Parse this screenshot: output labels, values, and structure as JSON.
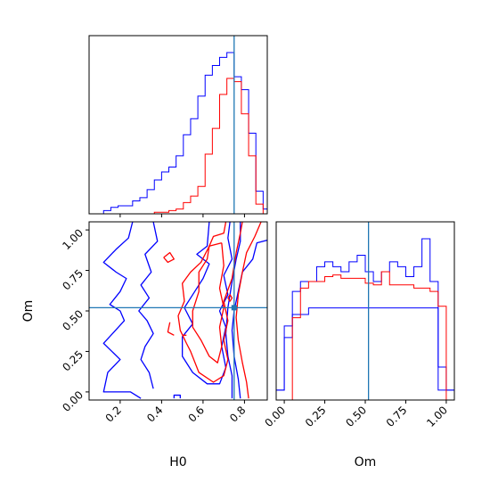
{
  "chart_data": [
    {
      "panel": "H0 marginal",
      "type": "histogram",
      "xlabel": "",
      "xlim": [
        0.05,
        0.91
      ],
      "truth": 0.75,
      "colors": {
        "blue": "#0000ff",
        "red": "#ff0000",
        "truth": "#1f77b4"
      },
      "bin_edges": [
        0.05,
        0.085,
        0.12,
        0.155,
        0.19,
        0.225,
        0.26,
        0.295,
        0.33,
        0.365,
        0.4,
        0.435,
        0.47,
        0.505,
        0.54,
        0.575,
        0.61,
        0.645,
        0.68,
        0.715,
        0.75,
        0.785,
        0.82,
        0.855,
        0.89,
        0.91
      ],
      "series": [
        {
          "values": [
            0.0,
            0.0,
            0.02,
            0.04,
            0.05,
            0.05,
            0.08,
            0.1,
            0.15,
            0.21,
            0.26,
            0.29,
            0.36,
            0.49,
            0.59,
            0.73,
            0.86,
            0.92,
            0.97,
            1.0,
            0.85,
            0.77,
            0.5,
            0.14,
            0.03
          ]
        },
        {
          "values": [
            0.0,
            0.0,
            0.0,
            0.0,
            0.0,
            0.0,
            0.0,
            0.0,
            0.0,
            0.01,
            0.01,
            0.02,
            0.03,
            0.07,
            0.11,
            0.17,
            0.37,
            0.53,
            0.74,
            0.84,
            0.82,
            0.62,
            0.36,
            0.06,
            0.0
          ]
        }
      ]
    },
    {
      "panel": "Om marginal",
      "type": "histogram",
      "xlabel": "Om",
      "xlim": [
        -0.05,
        1.05
      ],
      "xticks": [
        "0.00",
        "0.25",
        "0.50",
        "0.75",
        "1.00"
      ],
      "truth": 0.52,
      "bin_edges": [
        -0.05,
        0.0,
        0.05,
        0.1,
        0.15,
        0.2,
        0.25,
        0.3,
        0.35,
        0.4,
        0.45,
        0.5,
        0.55,
        0.6,
        0.65,
        0.7,
        0.75,
        0.8,
        0.85,
        0.9,
        0.95,
        1.0,
        1.05
      ],
      "series": [
        {
          "values": [
            0.06,
            0.45,
            0.52,
            0.52,
            0.56,
            0.56,
            0.56,
            0.56,
            0.56,
            0.56,
            0.56,
            0.56,
            0.56,
            0.56,
            0.56,
            0.56,
            0.56,
            0.56,
            0.56,
            0.56,
            0.2,
            0.06
          ]
        },
        {
          "values": [
            0.06,
            0.38,
            0.66,
            0.72,
            0.72,
            0.81,
            0.84,
            0.81,
            0.78,
            0.84,
            0.88,
            0.78,
            0.72,
            0.78,
            0.84,
            0.81,
            0.75,
            0.81,
            0.98,
            0.72,
            0.06,
            0.06
          ]
        },
        {
          "values": [
            0.0,
            0.0,
            0.5,
            0.68,
            0.72,
            0.72,
            0.75,
            0.76,
            0.74,
            0.74,
            0.74,
            0.71,
            0.7,
            0.78,
            0.7,
            0.7,
            0.7,
            0.68,
            0.68,
            0.66,
            0.57,
            0.0
          ]
        }
      ]
    },
    {
      "panel": "H0 vs Om",
      "type": "contour",
      "xlabel": "H0",
      "ylabel": "Om",
      "xlim": [
        0.05,
        0.91
      ],
      "ylim": [
        -0.05,
        1.05
      ],
      "xticks": [
        "0.2",
        "0.4",
        "0.6",
        "0.8"
      ],
      "yticks": [
        "0.00",
        "0.25",
        "0.50",
        "0.75",
        "1.00"
      ],
      "truth": {
        "x": 0.75,
        "y": 0.52
      },
      "series": [
        {
          "color": "blue",
          "lines": [
            [
              [
                0.26,
                1.05
              ],
              [
                0.24,
                0.95
              ],
              [
                0.18,
                0.88
              ],
              [
                0.12,
                0.8
              ],
              [
                0.18,
                0.74
              ],
              [
                0.23,
                0.7
              ],
              [
                0.2,
                0.62
              ],
              [
                0.15,
                0.54
              ],
              [
                0.2,
                0.5
              ],
              [
                0.22,
                0.44
              ],
              [
                0.17,
                0.37
              ],
              [
                0.12,
                0.3
              ],
              [
                0.16,
                0.25
              ],
              [
                0.2,
                0.2
              ],
              [
                0.14,
                0.12
              ],
              [
                0.12,
                0.0
              ],
              [
                0.25,
                0.0
              ],
              [
                0.3,
                -0.04
              ]
            ],
            [
              [
                0.36,
                1.05
              ],
              [
                0.38,
                0.93
              ],
              [
                0.32,
                0.85
              ],
              [
                0.35,
                0.74
              ],
              [
                0.3,
                0.66
              ],
              [
                0.34,
                0.58
              ],
              [
                0.29,
                0.5
              ],
              [
                0.33,
                0.44
              ],
              [
                0.36,
                0.36
              ],
              [
                0.32,
                0.28
              ],
              [
                0.3,
                0.2
              ],
              [
                0.34,
                0.12
              ],
              [
                0.36,
                0.02
              ]
            ],
            [
              [
                0.63,
                1.05
              ],
              [
                0.62,
                0.9
              ],
              [
                0.57,
                0.85
              ],
              [
                0.63,
                0.79
              ],
              [
                0.6,
                0.7
              ],
              [
                0.56,
                0.62
              ],
              [
                0.51,
                0.52
              ],
              [
                0.55,
                0.42
              ],
              [
                0.5,
                0.34
              ],
              [
                0.5,
                0.22
              ],
              [
                0.55,
                0.12
              ],
              [
                0.62,
                0.05
              ],
              [
                0.68,
                0.05
              ],
              [
                0.71,
                0.15
              ],
              [
                0.69,
                0.28
              ],
              [
                0.71,
                0.4
              ],
              [
                0.68,
                0.5
              ],
              [
                0.72,
                0.6
              ],
              [
                0.7,
                0.72
              ],
              [
                0.74,
                0.82
              ],
              [
                0.72,
                0.95
              ],
              [
                0.73,
                1.05
              ]
            ],
            [
              [
                0.78,
                1.05
              ],
              [
                0.78,
                0.93
              ],
              [
                0.76,
                0.82
              ],
              [
                0.74,
                0.68
              ],
              [
                0.72,
                0.52
              ],
              [
                0.71,
                0.36
              ],
              [
                0.72,
                0.22
              ],
              [
                0.74,
                0.1
              ],
              [
                0.74,
                -0.04
              ]
            ],
            [
              [
                0.92,
                0.94
              ],
              [
                0.86,
                0.92
              ],
              [
                0.84,
                0.82
              ],
              [
                0.79,
                0.74
              ],
              [
                0.77,
                0.62
              ],
              [
                0.75,
                0.5
              ],
              [
                0.74,
                0.38
              ],
              [
                0.75,
                0.22
              ],
              [
                0.77,
                0.08
              ],
              [
                0.78,
                -0.04
              ]
            ],
            [
              [
                0.46,
                -0.04
              ],
              [
                0.46,
                -0.02
              ],
              [
                0.49,
                -0.02
              ],
              [
                0.49,
                -0.04
              ]
            ]
          ]
        },
        {
          "color": "red",
          "lines": [
            [
              [
                0.71,
                1.05
              ],
              [
                0.7,
                0.98
              ],
              [
                0.65,
                0.96
              ],
              [
                0.63,
                0.9
              ],
              [
                0.59,
                0.8
              ],
              [
                0.54,
                0.74
              ],
              [
                0.5,
                0.67
              ],
              [
                0.51,
                0.56
              ],
              [
                0.48,
                0.47
              ],
              [
                0.49,
                0.38
              ],
              [
                0.52,
                0.3
              ],
              [
                0.54,
                0.25
              ],
              [
                0.58,
                0.12
              ],
              [
                0.65,
                0.06
              ],
              [
                0.7,
                0.1
              ],
              [
                0.72,
                0.2
              ],
              [
                0.7,
                0.32
              ],
              [
                0.72,
                0.44
              ],
              [
                0.7,
                0.56
              ],
              [
                0.74,
                0.7
              ],
              [
                0.76,
                0.86
              ],
              [
                0.78,
                0.98
              ],
              [
                0.79,
                1.05
              ]
            ],
            [
              [
                0.88,
                1.05
              ],
              [
                0.85,
                0.96
              ],
              [
                0.81,
                0.86
              ],
              [
                0.79,
                0.74
              ],
              [
                0.77,
                0.6
              ],
              [
                0.76,
                0.46
              ],
              [
                0.77,
                0.32
              ],
              [
                0.79,
                0.18
              ],
              [
                0.81,
                0.06
              ],
              [
                0.82,
                -0.04
              ]
            ],
            [
              [
                0.69,
                0.92
              ],
              [
                0.63,
                0.9
              ],
              [
                0.62,
                0.82
              ],
              [
                0.58,
                0.74
              ],
              [
                0.58,
                0.62
              ],
              [
                0.55,
                0.5
              ],
              [
                0.55,
                0.4
              ],
              [
                0.59,
                0.32
              ],
              [
                0.63,
                0.22
              ],
              [
                0.67,
                0.18
              ],
              [
                0.69,
                0.28
              ],
              [
                0.68,
                0.4
              ],
              [
                0.7,
                0.52
              ],
              [
                0.68,
                0.64
              ],
              [
                0.7,
                0.78
              ],
              [
                0.69,
                0.92
              ]
            ],
            [
              [
                0.44,
                0.43
              ],
              [
                0.43,
                0.37
              ],
              [
                0.46,
                0.35
              ]
            ],
            [
              [
                0.5,
                0.35
              ],
              [
                0.52,
                0.35
              ]
            ],
            [
              [
                0.41,
                0.83
              ],
              [
                0.44,
                0.86
              ],
              [
                0.46,
                0.82
              ],
              [
                0.43,
                0.8
              ],
              [
                0.41,
                0.83
              ]
            ],
            [
              [
                0.72,
                0.58
              ],
              [
                0.73,
                0.6
              ],
              [
                0.74,
                0.58
              ],
              [
                0.73,
                0.56
              ],
              [
                0.72,
                0.58
              ]
            ]
          ]
        }
      ]
    }
  ]
}
